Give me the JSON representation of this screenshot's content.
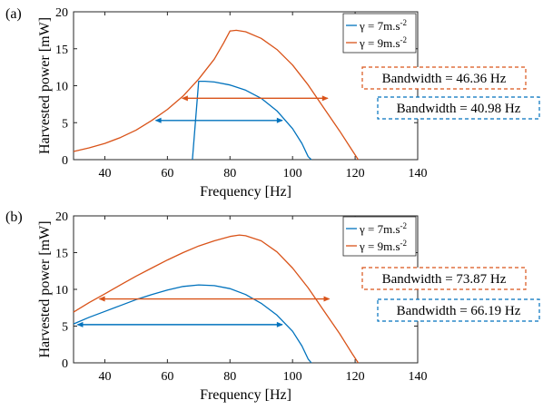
{
  "chart_data": [
    {
      "type": "line",
      "panel_label": "(a)",
      "xlabel": "Frequency [Hz]",
      "ylabel": "Harvested power [mW]",
      "xlim": [
        30,
        140
      ],
      "ylim": [
        0,
        20
      ],
      "xticks": [
        40,
        60,
        80,
        100,
        120,
        140
      ],
      "yticks": [
        0,
        5,
        10,
        15,
        20
      ],
      "grid": false,
      "legend_position": "top-right",
      "series": [
        {
          "name": "γ = 7m.s-2",
          "name_parts": {
            "base": "γ = 7m.s",
            "sup": "-2"
          },
          "color": "#0072BD",
          "points": [
            [
              68,
              0
            ],
            [
              70,
              10.6
            ],
            [
              72,
              10.6
            ],
            [
              75,
              10.5
            ],
            [
              80,
              10.1
            ],
            [
              85,
              9.4
            ],
            [
              90,
              8.3
            ],
            [
              95,
              6.6
            ],
            [
              100,
              4.2
            ],
            [
              103,
              2.2
            ],
            [
              105,
              0.4
            ],
            [
              106,
              0
            ]
          ]
        },
        {
          "name": "γ = 9m.s-2",
          "name_parts": {
            "base": "γ = 9m.s",
            "sup": "-2"
          },
          "color": "#D95319",
          "points": [
            [
              30,
              1.1
            ],
            [
              35,
              1.6
            ],
            [
              40,
              2.2
            ],
            [
              45,
              3.0
            ],
            [
              50,
              4.0
            ],
            [
              55,
              5.3
            ],
            [
              60,
              6.8
            ],
            [
              65,
              8.6
            ],
            [
              70,
              10.9
            ],
            [
              75,
              13.6
            ],
            [
              78,
              15.8
            ],
            [
              80,
              17.4
            ],
            [
              82,
              17.5
            ],
            [
              85,
              17.3
            ],
            [
              90,
              16.4
            ],
            [
              95,
              14.9
            ],
            [
              100,
              12.8
            ],
            [
              105,
              10.1
            ],
            [
              110,
              7.0
            ],
            [
              115,
              3.9
            ],
            [
              119,
              1.3
            ],
            [
              121,
              0
            ]
          ]
        }
      ],
      "bandwidth_annotations": [
        {
          "text": "Bandwidth = 46.36 Hz",
          "color": "#D95319",
          "x_start": 64.5,
          "x_end": 111.5,
          "y": 8.3
        },
        {
          "text": "Bandwidth = 40.98 Hz",
          "color": "#0072BD",
          "x_start": 56,
          "x_end": 97,
          "y": 5.3
        }
      ]
    },
    {
      "type": "line",
      "panel_label": "(b)",
      "xlabel": "Frequency [Hz]",
      "ylabel": "Harvested power [mW]",
      "xlim": [
        30,
        140
      ],
      "ylim": [
        0,
        20
      ],
      "xticks": [
        40,
        60,
        80,
        100,
        120,
        140
      ],
      "yticks": [
        0,
        5,
        10,
        15,
        20
      ],
      "grid": false,
      "legend_position": "top-right",
      "series": [
        {
          "name": "γ = 7m.s-2",
          "name_parts": {
            "base": "γ = 7m.s",
            "sup": "-2"
          },
          "color": "#0072BD",
          "points": [
            [
              30,
              5.3
            ],
            [
              35,
              6.2
            ],
            [
              40,
              7.0
            ],
            [
              45,
              7.8
            ],
            [
              50,
              8.6
            ],
            [
              55,
              9.3
            ],
            [
              60,
              9.9
            ],
            [
              65,
              10.4
            ],
            [
              70,
              10.6
            ],
            [
              75,
              10.5
            ],
            [
              80,
              10.1
            ],
            [
              85,
              9.3
            ],
            [
              90,
              8.1
            ],
            [
              95,
              6.5
            ],
            [
              100,
              4.3
            ],
            [
              103,
              2.3
            ],
            [
              105,
              0.5
            ],
            [
              106,
              0
            ]
          ]
        },
        {
          "name": "γ = 9m.s-2",
          "name_parts": {
            "base": "γ = 9m.s",
            "sup": "-2"
          },
          "color": "#D95319",
          "points": [
            [
              30,
              6.9
            ],
            [
              35,
              8.2
            ],
            [
              40,
              9.4
            ],
            [
              45,
              10.6
            ],
            [
              50,
              11.8
            ],
            [
              55,
              12.9
            ],
            [
              60,
              14.0
            ],
            [
              65,
              15.0
            ],
            [
              70,
              15.9
            ],
            [
              75,
              16.6
            ],
            [
              80,
              17.2
            ],
            [
              83,
              17.4
            ],
            [
              85,
              17.3
            ],
            [
              90,
              16.6
            ],
            [
              95,
              15.1
            ],
            [
              100,
              12.9
            ],
            [
              105,
              10.2
            ],
            [
              110,
              7.1
            ],
            [
              115,
              4.0
            ],
            [
              119,
              1.3
            ],
            [
              121,
              0
            ]
          ]
        }
      ],
      "bandwidth_annotations": [
        {
          "text": "Bandwidth = 73.87 Hz",
          "color": "#D95319",
          "x_start": 38,
          "x_end": 112,
          "y": 8.7
        },
        {
          "text": "Bandwidth = 66.19 Hz",
          "color": "#0072BD",
          "x_start": 31,
          "x_end": 97,
          "y": 5.2
        }
      ]
    }
  ]
}
